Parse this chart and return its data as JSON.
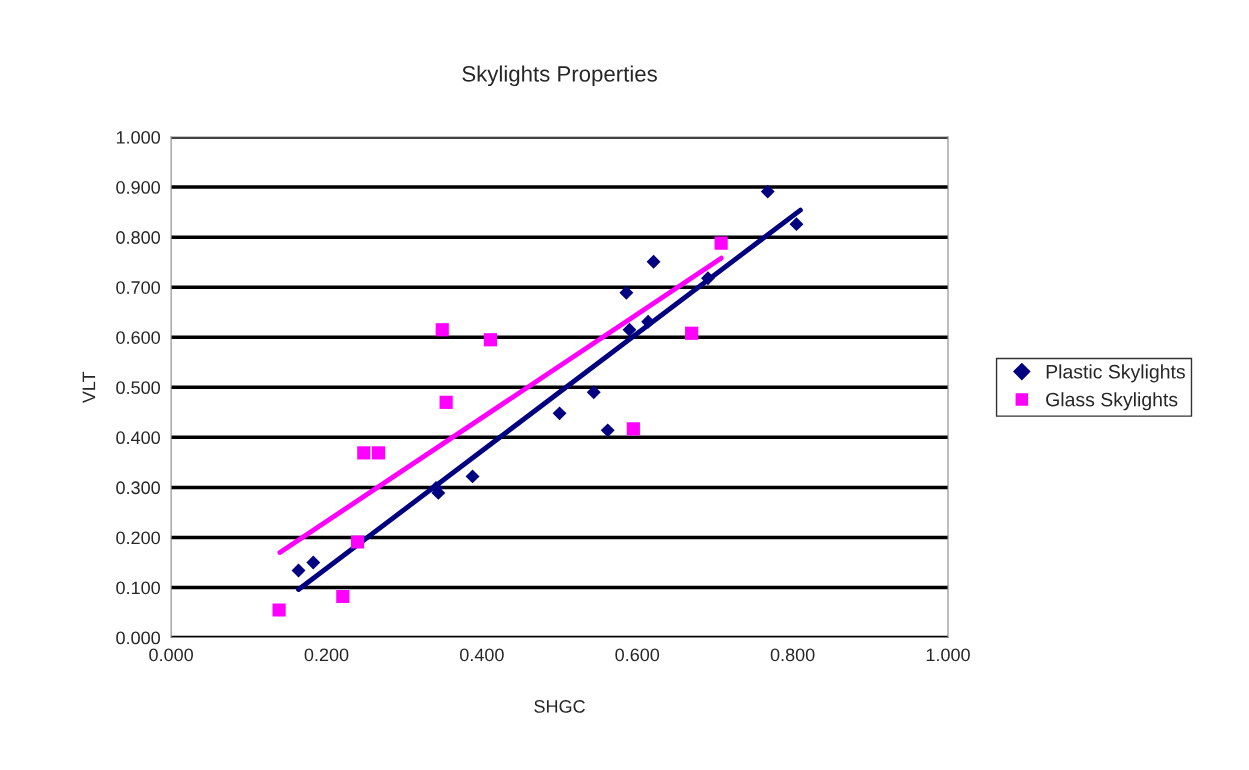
{
  "chart_data": {
    "type": "scatter",
    "title": "Skylights Properties",
    "xlabel": "SHGC",
    "ylabel": "VLT",
    "xlim": [
      0,
      1
    ],
    "ylim": [
      0,
      1
    ],
    "xticks": [
      {
        "value": 0,
        "label": "0.000"
      },
      {
        "value": 0.2,
        "label": "0.200"
      },
      {
        "value": 0.4,
        "label": "0.400"
      },
      {
        "value": 0.6,
        "label": "0.600"
      },
      {
        "value": 0.8,
        "label": "0.800"
      },
      {
        "value": 1,
        "label": "1.000"
      }
    ],
    "yticks": [
      {
        "value": 0,
        "label": "0.000"
      },
      {
        "value": 0.1,
        "label": "0.100"
      },
      {
        "value": 0.2,
        "label": "0.200"
      },
      {
        "value": 0.3,
        "label": "0.300"
      },
      {
        "value": 0.4,
        "label": "0.400"
      },
      {
        "value": 0.5,
        "label": "0.500"
      },
      {
        "value": 0.6,
        "label": "0.600"
      },
      {
        "value": 0.7,
        "label": "0.700"
      },
      {
        "value": 0.8,
        "label": "0.800"
      },
      {
        "value": 0.9,
        "label": "0.900"
      },
      {
        "value": 1,
        "label": "1.000"
      }
    ],
    "grid": "y",
    "legend": "right",
    "series": [
      {
        "name": "Plastic Skylights",
        "color": "#000080",
        "marker": "diamond",
        "x": [
          0.164,
          0.183,
          0.341,
          0.344,
          0.388,
          0.5,
          0.544,
          0.562,
          0.586,
          0.59,
          0.614,
          0.621,
          0.691,
          0.768,
          0.805
        ],
        "values": [
          0.134,
          0.15,
          0.299,
          0.289,
          0.322,
          0.448,
          0.49,
          0.414,
          0.689,
          0.615,
          0.631,
          0.751,
          0.718,
          0.891,
          0.826
        ]
      },
      {
        "name": "Glass Skylights",
        "color": "#ff00ff",
        "marker": "square",
        "x": [
          0.139,
          0.221,
          0.24,
          0.248,
          0.267,
          0.349,
          0.354,
          0.411,
          0.595,
          0.67,
          0.708
        ],
        "values": [
          0.055,
          0.082,
          0.191,
          0.369,
          0.369,
          0.615,
          0.47,
          0.595,
          0.417,
          0.608,
          0.788
        ]
      },
      {
        "type": "line",
        "color": "#000080",
        "x": [
          0.164,
          0.81
        ],
        "values": [
          0.096,
          0.854
        ]
      },
      {
        "type": "line",
        "color": "#ff00ff",
        "x": [
          0.14,
          0.708
        ],
        "values": [
          0.17,
          0.758
        ]
      }
    ]
  }
}
